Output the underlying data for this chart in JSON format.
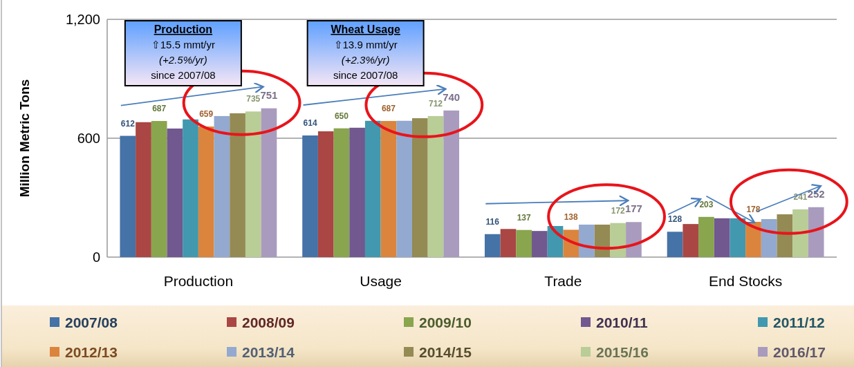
{
  "chart_data": {
    "type": "bar",
    "ylabel": "Million Metric Tons",
    "categories": [
      "Production",
      "Usage",
      "Trade",
      "End Stocks"
    ],
    "ylim": [
      0,
      1200
    ],
    "yticks": [
      0,
      600,
      {
        "value": 1200,
        "label": "1,200"
      }
    ],
    "grid": "y",
    "legend": "bottom",
    "annotations": [
      "Production\n⇧15.5 mmt/yr\n(+2.5%/yr)\nsince 2007/08",
      "Wheat Usage\n⇧13.9 mmt/yr\n(+2.3%/yr)\nsince 2007/08"
    ],
    "series": [
      {
        "name": "2007/08",
        "color": "#4572a7",
        "values": [
          612,
          614,
          116,
          128
        ],
        "value_labels": [
          "612",
          "614",
          "116",
          "128"
        ]
      },
      {
        "name": "2008/09",
        "color": "#aa4643",
        "values": [
          681,
          635,
          142,
          167
        ]
      },
      {
        "name": "2009/10",
        "color": "#89a54e",
        "values": [
          687,
          650,
          137,
          203
        ],
        "value_labels": [
          "687",
          "650",
          "137",
          "203"
        ]
      },
      {
        "name": "2010/11",
        "color": "#71588f",
        "values": [
          649,
          653,
          132,
          196
        ]
      },
      {
        "name": "2011/12",
        "color": "#4198af",
        "values": [
          695,
          688,
          157,
          196
        ]
      },
      {
        "name": "2012/13",
        "color": "#db843d",
        "values": [
          659,
          687,
          138,
          178
        ],
        "value_labels": [
          "659",
          "687",
          "138",
          "178"
        ]
      },
      {
        "name": "2013/14",
        "color": "#93a9cf",
        "values": [
          712,
          688,
          164,
          192
        ]
      },
      {
        "name": "2014/15",
        "color": "#948a54",
        "values": [
          726,
          701,
          164,
          216
        ]
      },
      {
        "name": "2015/16",
        "color": "#b9cd96",
        "values": [
          735,
          712,
          172,
          241
        ],
        "value_labels": [
          "735",
          "712",
          "172",
          "241"
        ]
      },
      {
        "name": "2016/17",
        "color": "#a99bbd",
        "values": [
          751,
          740,
          177,
          252
        ],
        "value_labels": [
          "751",
          "740",
          "177",
          "252"
        ]
      }
    ]
  }
}
